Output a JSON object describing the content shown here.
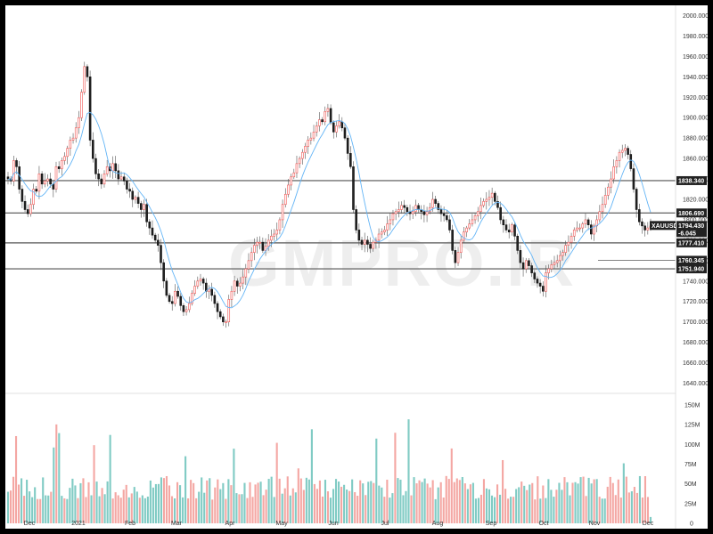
{
  "chart_data": {
    "type": "candlestick",
    "title": "",
    "symbol": "XAUUSD",
    "watermark": "GMPRO.IR",
    "ylim": [
      1630,
      2010
    ],
    "y_ticks": [
      "2000.000",
      "1980.000",
      "1960.000",
      "1940.000",
      "1920.000",
      "1900.000",
      "1880.000",
      "1860.000",
      "1840.000",
      "1820.000",
      "1800.000",
      "1780.000",
      "1760.000",
      "1740.000",
      "1720.000",
      "1700.000",
      "1680.000",
      "1660.000",
      "1640.000"
    ],
    "months": [
      "Dec",
      "2021",
      "Feb",
      "Mar",
      "Apr",
      "May",
      "Jun",
      "Jul",
      "Aug",
      "Sep",
      "Oct",
      "Nov",
      "Dec"
    ],
    "volume_ticks": [
      "150M",
      "125M",
      "100M",
      "75M",
      "50M",
      "25M",
      "0"
    ],
    "volume_ylim": [
      0,
      160
    ],
    "horizontal_levels": [
      {
        "value": 1838.34,
        "label": "1838.340"
      },
      {
        "value": 1806.69,
        "label": "1806.690"
      },
      {
        "value": 1777.41,
        "label": "1777.410"
      },
      {
        "value": 1751.94,
        "label": "1751.940"
      }
    ],
    "short_level": {
      "value": 1760.345,
      "label": "1760.345"
    },
    "last_price": {
      "value": 1794.43,
      "label": "1794.430",
      "change": "-6.045"
    },
    "colors": {
      "up": "#26a69a",
      "down": "#ef5350",
      "wick": "#555555",
      "ma": "#64b5f6",
      "level": "#707070",
      "label_bg": "#222222"
    },
    "series": [
      {
        "name": "close",
        "values": [
          1840,
          1838,
          1858,
          1852,
          1830,
          1818,
          1810,
          1806,
          1815,
          1830,
          1828,
          1845,
          1835,
          1838,
          1840,
          1835,
          1830,
          1852,
          1850,
          1858,
          1862,
          1870,
          1878,
          1880,
          1890,
          1900,
          1925,
          1950,
          1940,
          1878,
          1860,
          1845,
          1840,
          1835,
          1845,
          1852,
          1848,
          1855,
          1848,
          1840,
          1842,
          1838,
          1830,
          1828,
          1820,
          1822,
          1816,
          1810,
          1815,
          1798,
          1792,
          1785,
          1780,
          1775,
          1758,
          1740,
          1726,
          1720,
          1718,
          1730,
          1725,
          1716,
          1710,
          1712,
          1718,
          1728,
          1735,
          1740,
          1742,
          1738,
          1730,
          1732,
          1726,
          1718,
          1710,
          1705,
          1700,
          1700,
          1722,
          1730,
          1740,
          1735,
          1738,
          1744,
          1752,
          1760,
          1768,
          1775,
          1778,
          1778,
          1770,
          1774,
          1780,
          1784,
          1786,
          1790,
          1800,
          1815,
          1825,
          1834,
          1842,
          1846,
          1855,
          1860,
          1866,
          1872,
          1878,
          1880,
          1886,
          1892,
          1898,
          1896,
          1906,
          1909,
          1895,
          1886,
          1892,
          1896,
          1890,
          1880,
          1865,
          1852,
          1810,
          1790,
          1780,
          1776,
          1780,
          1776,
          1772,
          1778,
          1780,
          1786,
          1788,
          1790,
          1796,
          1800,
          1806,
          1808,
          1810,
          1814,
          1812,
          1808,
          1806,
          1808,
          1814,
          1810,
          1808,
          1805,
          1808,
          1812,
          1820,
          1816,
          1810,
          1806,
          1804,
          1800,
          1790,
          1770,
          1758,
          1768,
          1780,
          1788,
          1792,
          1796,
          1800,
          1804,
          1808,
          1814,
          1818,
          1820,
          1822,
          1826,
          1818,
          1812,
          1800,
          1795,
          1790,
          1788,
          1795,
          1784,
          1770,
          1758,
          1752,
          1760,
          1755,
          1748,
          1742,
          1738,
          1735,
          1730,
          1748,
          1752,
          1756,
          1758,
          1760,
          1765,
          1768,
          1775,
          1778,
          1784,
          1790,
          1792,
          1792,
          1796,
          1800,
          1795,
          1786,
          1794,
          1800,
          1808,
          1815,
          1824,
          1832,
          1840,
          1852,
          1858,
          1866,
          1868,
          1870,
          1864,
          1850,
          1830,
          1810,
          1798,
          1794,
          1790,
          1792,
          1794
        ]
      }
    ],
    "volume_bars": 240
  }
}
